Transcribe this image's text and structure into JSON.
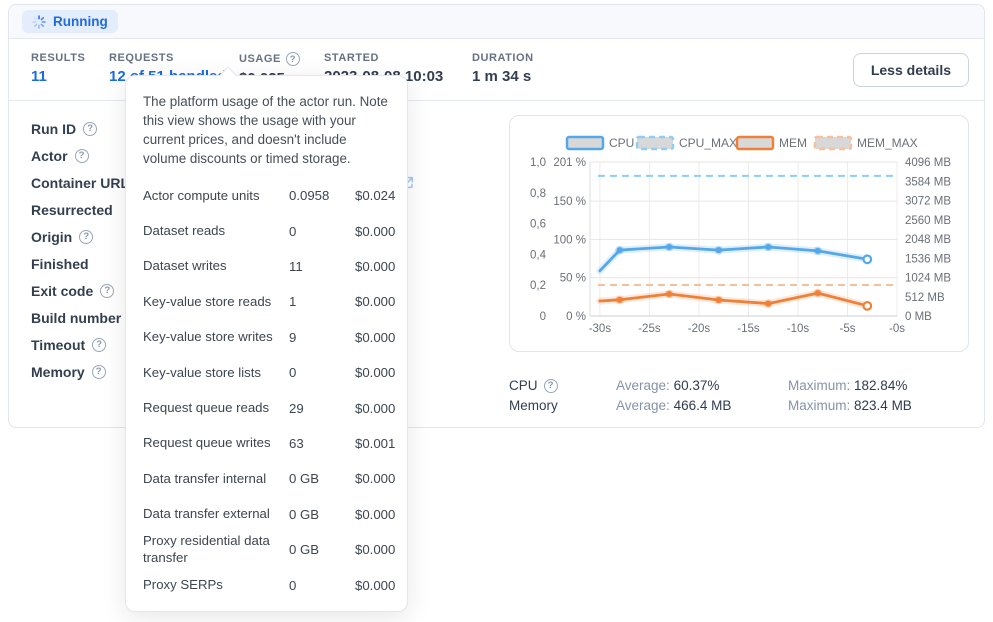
{
  "status_bar": {
    "status_label": "Running"
  },
  "stats": {
    "results_label": "RESULTS",
    "results_value": "11",
    "requests_label": "REQUESTS",
    "requests_value": "12 of 51 handled",
    "usage_label": "USAGE",
    "usage_value": "$0.025",
    "started_label": "STARTED",
    "started_value": "2023-08-08 10:03",
    "duration_label": "DURATION",
    "duration_value": "1 m 34 s",
    "less_details_label": "Less details"
  },
  "run_details": {
    "fields": [
      {
        "label": "Run ID",
        "help": true
      },
      {
        "label": "Actor",
        "help": true
      },
      {
        "label": "Container URL",
        "help": true,
        "external_link": true
      },
      {
        "label": "Resurrected",
        "help": false
      },
      {
        "label": "Origin",
        "help": true
      },
      {
        "label": "Finished",
        "help": false
      },
      {
        "label": "Exit code",
        "help": true
      },
      {
        "label": "Build number",
        "help": true
      },
      {
        "label": "Timeout",
        "help": true
      },
      {
        "label": "Memory",
        "help": true
      }
    ]
  },
  "usage_tooltip": {
    "description": "The platform usage of the actor run. Note this view shows the usage with your current prices, and doesn't include volume discounts or timed storage.",
    "rows": [
      {
        "label": "Actor compute units",
        "value": "0.0958",
        "cost": "$0.024"
      },
      {
        "label": "Dataset reads",
        "value": "0",
        "cost": "$0.000"
      },
      {
        "label": "Dataset writes",
        "value": "11",
        "cost": "$0.000"
      },
      {
        "label": "Key-value store reads",
        "value": "1",
        "cost": "$0.000"
      },
      {
        "label": "Key-value store writes",
        "value": "9",
        "cost": "$0.000"
      },
      {
        "label": "Key-value store lists",
        "value": "0",
        "cost": "$0.000"
      },
      {
        "label": "Request queue reads",
        "value": "29",
        "cost": "$0.000"
      },
      {
        "label": "Request queue writes",
        "value": "63",
        "cost": "$0.001"
      },
      {
        "label": "Data transfer internal",
        "value": "0 GB",
        "cost": "$0.000"
      },
      {
        "label": "Data transfer external",
        "value": "0 GB",
        "cost": "$0.000"
      },
      {
        "label": "Proxy residential data transfer",
        "value": "0 GB",
        "cost": "$0.000"
      },
      {
        "label": "Proxy SERPs",
        "value": "0",
        "cost": "$0.000"
      }
    ]
  },
  "chart_data": {
    "type": "line",
    "title": "",
    "x": [
      -30,
      -28,
      -23,
      -18,
      -13,
      -8,
      -3
    ],
    "x_tick_positions": [
      -30,
      -25,
      -20,
      -15,
      -10,
      -5,
      0
    ],
    "x_tick_labels": [
      "-30s",
      "-25s",
      "-20s",
      "-15s",
      "-10s",
      "-5s",
      "-0s"
    ],
    "series": [
      {
        "name": "CPU",
        "axis": "percent",
        "style": "solid",
        "color": "#54a8e8",
        "values": [
          59,
          86,
          90,
          86,
          90,
          85,
          74
        ]
      },
      {
        "name": "CPU_MAX",
        "axis": "percent",
        "style": "dashed",
        "color": "#8ecdf4",
        "constant": 182.84
      },
      {
        "name": "MEM",
        "axis": "mb",
        "style": "solid",
        "color": "#ef8038",
        "values": [
          400,
          430,
          585,
          425,
          330,
          610,
          270
        ]
      },
      {
        "name": "MEM_MAX",
        "axis": "mb",
        "style": "dashed",
        "color": "#f6c09d",
        "constant": 823.4
      }
    ],
    "axes": {
      "normalized_ticks": [
        "1,0",
        "0,8",
        "0,6",
        "0,4",
        "0,2",
        "0"
      ],
      "percent_ticks": [
        "201 %",
        "150 %",
        "100 %",
        "50 %",
        "0 %"
      ],
      "percent_tick_values": [
        201,
        150,
        100,
        50,
        0
      ],
      "percent_max": 201,
      "mb_ticks": [
        "4096 MB",
        "3584 MB",
        "3072 MB",
        "2560 MB",
        "2048 MB",
        "1536 MB",
        "1024 MB",
        "512 MB",
        "0 MB"
      ],
      "mb_max": 4096
    },
    "legend": [
      "CPU",
      "CPU_MAX",
      "MEM",
      "MEM_MAX"
    ],
    "legend_position": "top",
    "grid": true,
    "swatch_fill": "#d8d8d8"
  },
  "chart_stats": {
    "cpu_label": "CPU",
    "cpu_average_label": "Average:",
    "cpu_average_value": "60.37%",
    "cpu_maximum_label": "Maximum:",
    "cpu_maximum_value": "182.84%",
    "memory_label": "Memory",
    "memory_average_label": "Average:",
    "memory_average_value": "466.4 MB",
    "memory_maximum_label": "Maximum:",
    "memory_maximum_value": "823.4 MB"
  }
}
